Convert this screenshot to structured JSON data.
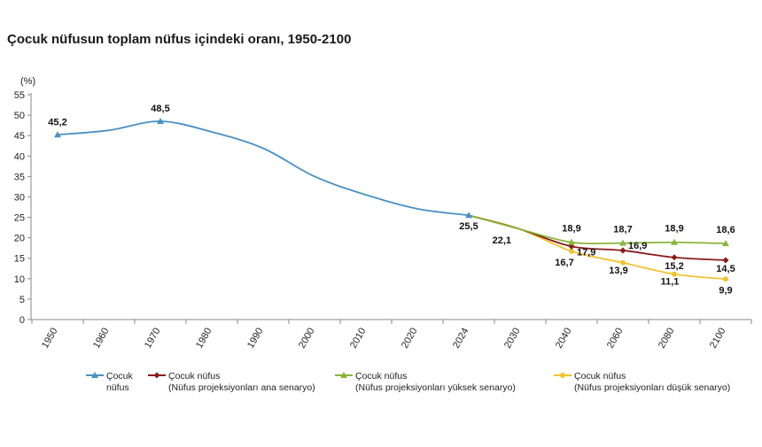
{
  "chart_data": {
    "type": "line",
    "title": "Çocuk nüfusun toplam nüfus içindeki oranı, 1950-2100",
    "ylabel": "(%)",
    "xlabel": "",
    "ylim": [
      0,
      55
    ],
    "yticks": [
      "0",
      "5",
      "10",
      "15",
      "20",
      "25",
      "30",
      "35",
      "40",
      "45",
      "50",
      "55"
    ],
    "categories": [
      "1950",
      "1960",
      "1970",
      "1980",
      "1990",
      "2000",
      "2010",
      "2020",
      "2024",
      "2030",
      "2040",
      "2060",
      "2080",
      "2100"
    ],
    "grid": false,
    "legend_position": "bottom",
    "series": [
      {
        "name": "Çocuk nüfus",
        "name_lines": [
          "Çocuk",
          "nüfus"
        ],
        "color": "#4a90c4",
        "marker": "triangle",
        "values": [
          45.2,
          46.3,
          48.5,
          45.9,
          41.9,
          35.0,
          30.5,
          27.1,
          25.5,
          null,
          null,
          null,
          null,
          null
        ],
        "labels": [
          "45,2",
          null,
          "48,5",
          null,
          null,
          null,
          null,
          null,
          "25,5",
          null,
          null,
          null,
          null,
          null
        ]
      },
      {
        "name": "Çocuk nüfus (Nüfus projeksiyonları ana senaryo)",
        "name_lines": [
          "Çocuk nüfus",
          "(Nüfus projeksiyonları ana senaryo)"
        ],
        "color": "#8b1a1a",
        "marker": "diamond",
        "values": [
          null,
          null,
          null,
          null,
          null,
          null,
          null,
          null,
          25.5,
          22.1,
          17.9,
          16.9,
          15.2,
          14.5
        ],
        "labels": [
          null,
          null,
          null,
          null,
          null,
          null,
          null,
          null,
          null,
          "22,1",
          "17,9",
          "16,9",
          "15,2",
          "14,5"
        ]
      },
      {
        "name": "Çocuk nüfus (Nüfus projeksiyonları yüksek senaryo)",
        "name_lines": [
          "Çocuk nüfus",
          "(Nüfus projeksiyonları yüksek senaryo)"
        ],
        "color": "#8ab53a",
        "marker": "triangle",
        "values": [
          null,
          null,
          null,
          null,
          null,
          null,
          null,
          null,
          25.5,
          22.1,
          18.9,
          18.7,
          18.9,
          18.6
        ],
        "labels": [
          null,
          null,
          null,
          null,
          null,
          null,
          null,
          null,
          null,
          null,
          "18,9",
          "18,7",
          "18,9",
          "18,6"
        ]
      },
      {
        "name": "Çocuk nüfus (Nüfus projeksiyonları düşük senaryo)",
        "name_lines": [
          "Çocuk nüfus",
          "(Nüfus projeksiyonları düşük senaryo)"
        ],
        "color": "#f2c330",
        "marker": "circle",
        "values": [
          null,
          null,
          null,
          null,
          null,
          null,
          null,
          null,
          25.5,
          22.1,
          16.7,
          13.9,
          11.1,
          9.9
        ],
        "labels": [
          null,
          null,
          null,
          null,
          null,
          null,
          null,
          null,
          null,
          null,
          "16,7",
          "13,9",
          "11,1",
          "9,9"
        ]
      }
    ]
  }
}
